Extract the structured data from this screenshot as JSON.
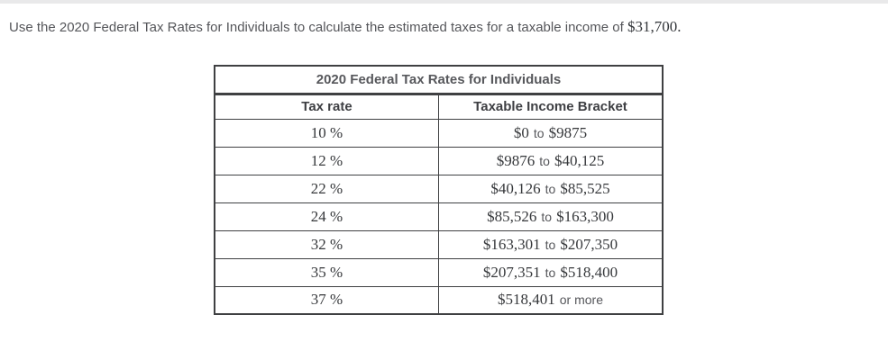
{
  "instruction": {
    "prefix": "Use the 2020 Federal Tax Rates for Individuals to calculate the estimated taxes for a taxable income of",
    "amount": "$31,700",
    "suffix": "."
  },
  "colors": {
    "top_strip": "#e9e9ea",
    "table_border": "#3f4042",
    "title_text": "#57585c",
    "header_text": "#3e3f43",
    "serif_text": "#36383b",
    "body_text": "#55565a"
  },
  "table": {
    "title": "2020 Federal Tax Rates for Individuals",
    "columns": [
      "Tax rate",
      "Taxable Income Bracket"
    ],
    "rows": [
      {
        "rate": "10 %",
        "from": "$0",
        "connector": "to",
        "to": "$9875"
      },
      {
        "rate": "12 %",
        "from": "$9876",
        "connector": "to",
        "to": "$40,125"
      },
      {
        "rate": "22 %",
        "from": "$40,126",
        "connector": "to",
        "to": "$85,525"
      },
      {
        "rate": "24 %",
        "from": "$85,526",
        "connector": "to",
        "to": "$163,300"
      },
      {
        "rate": "32 %",
        "from": "$163,301",
        "connector": "to",
        "to": "$207,350"
      },
      {
        "rate": "35 %",
        "from": "$207,351",
        "connector": "to",
        "to": "$518,400"
      },
      {
        "rate": "37 %",
        "from": "$518,401",
        "connector": "or more",
        "to": ""
      }
    ]
  }
}
